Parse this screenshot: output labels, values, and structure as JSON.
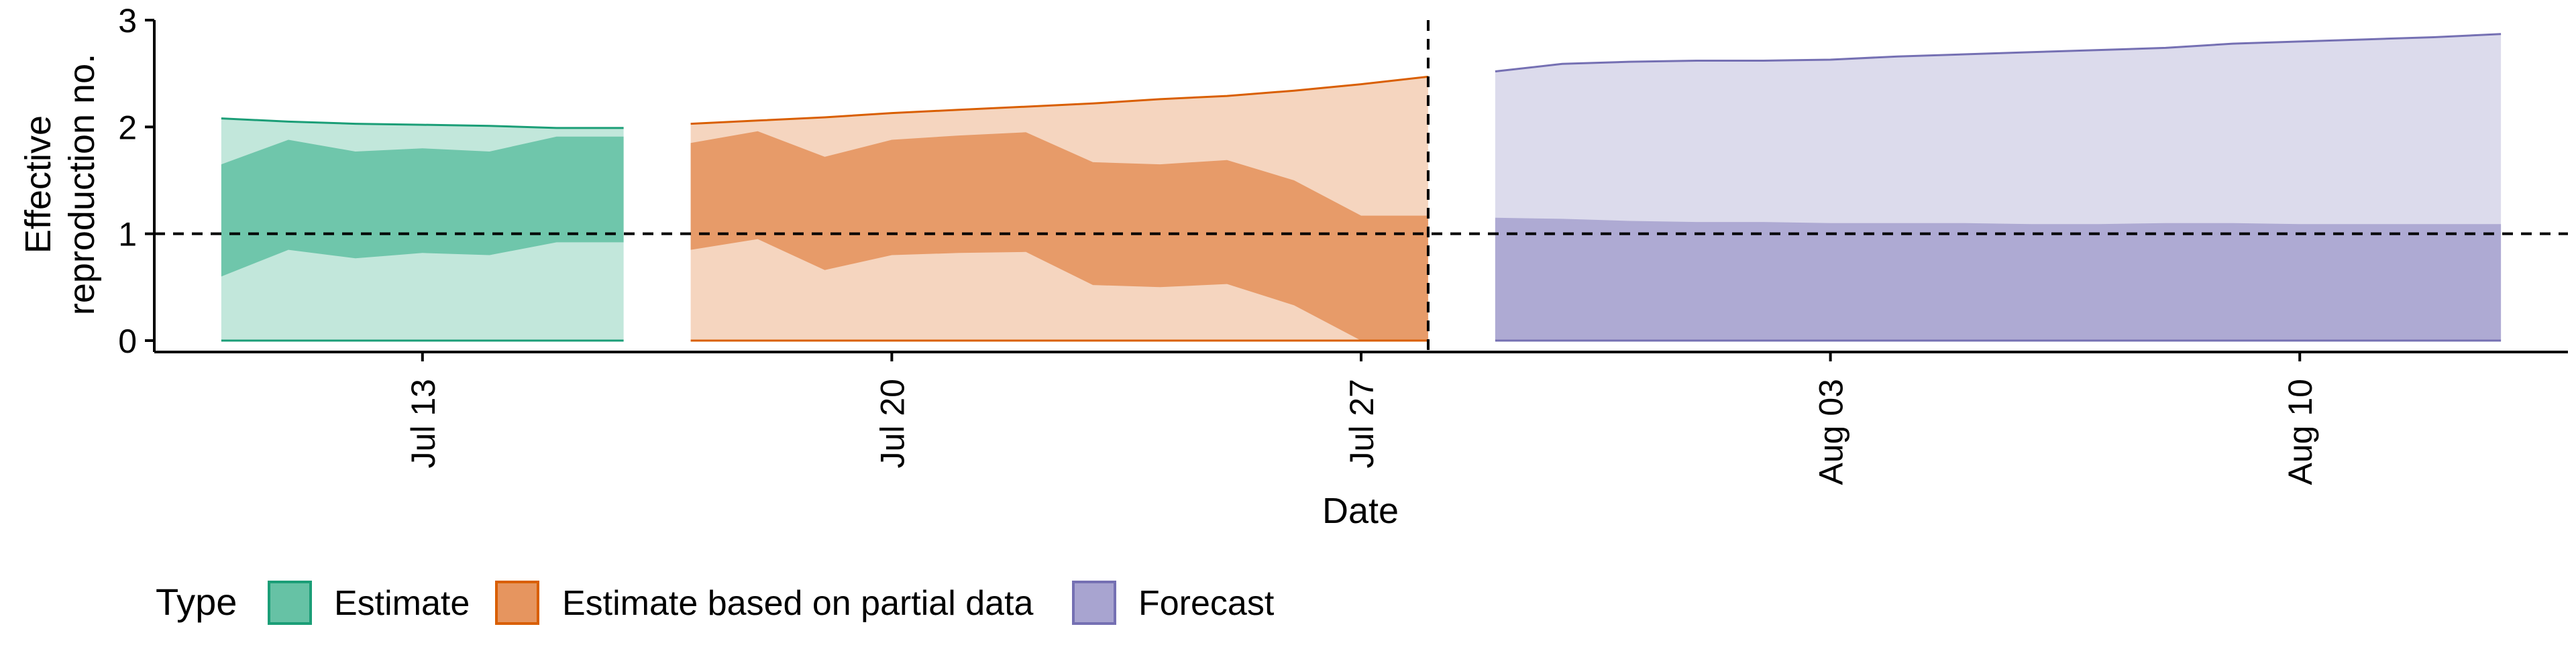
{
  "chart_data": {
    "type": "area",
    "title": "",
    "xlabel": "Date",
    "ylabel_lines": [
      "Effective",
      "reproduction no."
    ],
    "ylim": [
      0,
      3
    ],
    "yticks": [
      0,
      1,
      2,
      3
    ],
    "xlim": [
      "2020-07-09",
      "2020-08-14"
    ],
    "xticks": [
      {
        "date": "2020-07-13",
        "label": "Jul 13"
      },
      {
        "date": "2020-07-20",
        "label": "Jul 20"
      },
      {
        "date": "2020-07-27",
        "label": "Jul 27"
      },
      {
        "date": "2020-08-03",
        "label": "Aug 03"
      },
      {
        "date": "2020-08-10",
        "label": "Aug 10"
      }
    ],
    "reference_lines": {
      "horizontal_y": 1,
      "vertical_date": "2020-07-28"
    },
    "grid": false,
    "legend": {
      "title": "Type",
      "placement": "bottom-left",
      "items": [
        "Estimate",
        "Estimate based on partial data",
        "Forecast"
      ]
    },
    "series": [
      {
        "name": "Estimate",
        "color_fill": "#66c2a5",
        "color_line": "#1b9e77",
        "x": [
          "2020-07-10",
          "2020-07-11",
          "2020-07-12",
          "2020-07-13",
          "2020-07-14",
          "2020-07-15",
          "2020-07-16"
        ],
        "lower_90": [
          0,
          0,
          0,
          0,
          0,
          0,
          0
        ],
        "lower_50": [
          0.6,
          0.85,
          0.77,
          0.82,
          0.8,
          0.92,
          0.92
        ],
        "upper_50": [
          1.65,
          1.88,
          1.77,
          1.8,
          1.77,
          1.91,
          1.91
        ],
        "upper_90": [
          2.08,
          2.05,
          2.03,
          2.02,
          2.01,
          1.99,
          1.99
        ]
      },
      {
        "name": "Estimate based on partial data",
        "color_fill": "#e6955f",
        "color_line": "#d95f02",
        "x": [
          "2020-07-17",
          "2020-07-18",
          "2020-07-19",
          "2020-07-20",
          "2020-07-21",
          "2020-07-22",
          "2020-07-23",
          "2020-07-24",
          "2020-07-25",
          "2020-07-26",
          "2020-07-27",
          "2020-07-28"
        ],
        "lower_90": [
          0,
          0,
          0,
          0,
          0,
          0,
          0,
          0,
          0,
          0,
          0,
          0
        ],
        "lower_50": [
          0.85,
          0.95,
          0.66,
          0.8,
          0.82,
          0.83,
          0.52,
          0.5,
          0.53,
          0.33,
          0,
          0
        ],
        "upper_50": [
          1.85,
          1.96,
          1.72,
          1.88,
          1.92,
          1.95,
          1.67,
          1.65,
          1.69,
          1.5,
          1.17,
          1.17
        ],
        "upper_90": [
          2.03,
          2.06,
          2.09,
          2.13,
          2.16,
          2.19,
          2.22,
          2.26,
          2.29,
          2.34,
          2.4,
          2.47
        ]
      },
      {
        "name": "Forecast",
        "color_fill": "#a8a4d0",
        "color_line": "#7570b3",
        "x": [
          "2020-07-29",
          "2020-07-30",
          "2020-07-31",
          "2020-08-01",
          "2020-08-02",
          "2020-08-03",
          "2020-08-04",
          "2020-08-05",
          "2020-08-06",
          "2020-08-07",
          "2020-08-08",
          "2020-08-09",
          "2020-08-10",
          "2020-08-11",
          "2020-08-12",
          "2020-08-13"
        ],
        "lower_90": [
          0,
          0,
          0,
          0,
          0,
          0,
          0,
          0,
          0,
          0,
          0,
          0,
          0,
          0,
          0,
          0
        ],
        "lower_50": [
          0,
          0,
          0,
          0,
          0,
          0,
          0,
          0,
          0,
          0,
          0,
          0,
          0,
          0,
          0,
          0
        ],
        "upper_50": [
          1.15,
          1.14,
          1.12,
          1.11,
          1.11,
          1.1,
          1.1,
          1.1,
          1.09,
          1.09,
          1.1,
          1.1,
          1.09,
          1.09,
          1.09,
          1.09
        ],
        "upper_90": [
          2.52,
          2.59,
          2.61,
          2.62,
          2.62,
          2.63,
          2.66,
          2.68,
          2.7,
          2.72,
          2.74,
          2.78,
          2.8,
          2.82,
          2.84,
          2.87
        ]
      }
    ]
  }
}
